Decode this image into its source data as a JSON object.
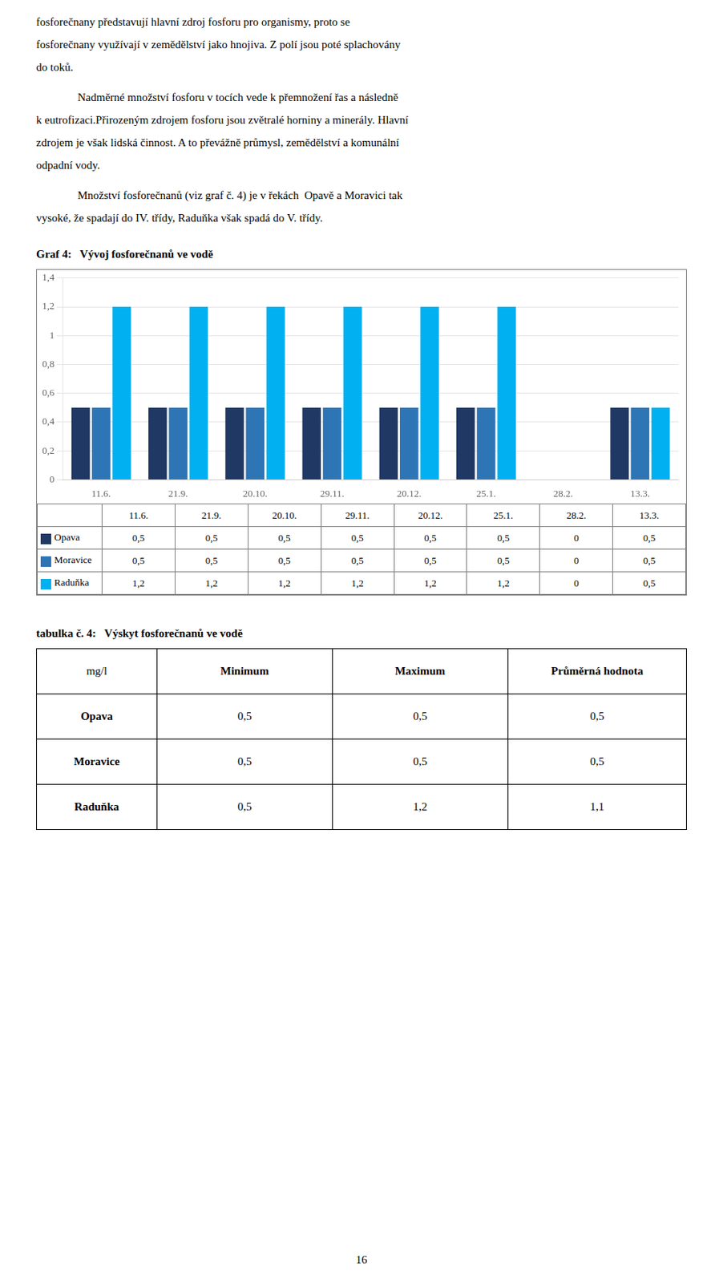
{
  "chart_data": [
    {
      "type": "bar",
      "annotations": [
        [
          "fosforečnany představují hlavní zdroj fosforu pro organismy, proto se",
          "fosforečnany využívají v zemědělství jako hnojiva. Z polí jsou poté splachovány",
          "do toků."
        ],
        [
          "Nadměrné množství fosforu v tocích vede k přemnožení řas a následně",
          "k eutrofizaci.Přirozeným zdrojem fosforu jsou zvětralé horniny a minerály. Hlavní",
          "zdrojem je však lidská činnost. A to převážně průmysl, zemědělství a komunální",
          "odpadní vody."
        ],
        [
          "Množství fosforečnanů (viz graf č. 4) je v řekách  Opavě a Moravici tak",
          "vysoké, že spadají do IV. třídy, Raduňka však spadá do V. třídy."
        ]
      ],
      "title": "Graf 4:   Vývoj fosforečnanů ve vodě",
      "categories": [
        "11.6.",
        "21.9.",
        "20.10.",
        "29.11.",
        "20.12.",
        "25.1.",
        "28.2.",
        "13.3."
      ],
      "series": [
        {
          "name": "Opava",
          "color": "#1F3864",
          "values": [
            0.5,
            0.5,
            0.5,
            0.5,
            0.5,
            0.5,
            0,
            0.5
          ],
          "value_labels": [
            "0,5",
            "0,5",
            "0,5",
            "0,5",
            "0,5",
            "0,5",
            "0",
            "0,5"
          ]
        },
        {
          "name": "Moravice",
          "color": "#2E75B6",
          "values": [
            0.5,
            0.5,
            0.5,
            0.5,
            0.5,
            0.5,
            0,
            0.5
          ],
          "value_labels": [
            "0,5",
            "0,5",
            "0,5",
            "0,5",
            "0,5",
            "0,5",
            "0",
            "0,5"
          ]
        },
        {
          "name": "Raduňka",
          "color": "#00B0F0",
          "values": [
            1.2,
            1.2,
            1.2,
            1.2,
            1.2,
            1.2,
            0,
            0.5
          ],
          "value_labels": [
            "1,2",
            "1,2",
            "1,2",
            "1,2",
            "1,2",
            "1,2",
            "0",
            "0,5"
          ]
        }
      ],
      "ylim": [
        0,
        1.4
      ],
      "yticks": [
        0,
        {
          "value": 0.2,
          "label": "0,2"
        },
        {
          "value": 0.4,
          "label": "0,4"
        },
        {
          "value": 0.6,
          "label": "0,6"
        },
        {
          "value": 0.8,
          "label": "0,8"
        },
        1,
        {
          "value": 1.2,
          "label": "1,2"
        },
        {
          "value": 1.4,
          "label": "1,4"
        }
      ],
      "grid": true
    },
    {
      "type": "table",
      "title": "tabulka č. 4:   Výskyt fosforečnanů ve vodě",
      "columns": [
        "mg/l",
        "Minimum",
        "Maximum",
        "Průměrná hodnota"
      ],
      "rows": [
        [
          "Opava",
          "0,5",
          "0,5",
          "0,5"
        ],
        [
          "Moravice",
          "0,5",
          "0,5",
          "0,5"
        ],
        [
          "Raduňka",
          "0,5",
          "1,2",
          "1,1"
        ]
      ],
      "annotations": [
        "16"
      ]
    }
  ]
}
